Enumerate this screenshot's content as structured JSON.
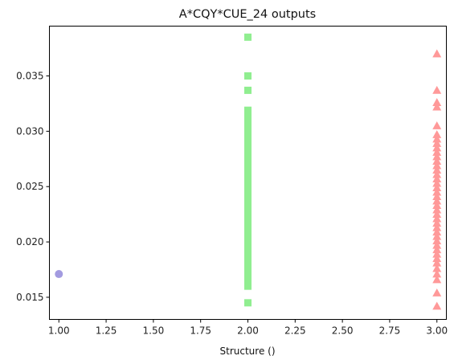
{
  "chart_data": {
    "type": "scatter",
    "title": "A*CQY*CUE_24 outputs",
    "xlabel": "Structure ()",
    "ylabel": "",
    "xlim": [
      0.95,
      3.05
    ],
    "ylim": [
      0.013,
      0.0395
    ],
    "x_ticks": [
      "1.00",
      "1.25",
      "1.50",
      "1.75",
      "2.00",
      "2.25",
      "2.50",
      "2.75",
      "3.00"
    ],
    "y_ticks": [
      "0.015",
      "0.020",
      "0.025",
      "0.030",
      "0.035"
    ],
    "grid": false,
    "series": [
      {
        "marker": "circle",
        "color": "#a39be0",
        "points": [
          [
            1.0,
            0.0171
          ]
        ]
      },
      {
        "marker": "square",
        "color": "#90ee90",
        "points": [
          [
            2.0,
            0.0385
          ],
          [
            2.0,
            0.035
          ],
          [
            2.0,
            0.0337
          ],
          [
            2.0,
            0.0319
          ],
          [
            2.0,
            0.0313
          ],
          [
            2.0,
            0.0308
          ],
          [
            2.0,
            0.0304
          ],
          [
            2.0,
            0.03
          ],
          [
            2.0,
            0.0296
          ],
          [
            2.0,
            0.0292
          ],
          [
            2.0,
            0.0288
          ],
          [
            2.0,
            0.0284
          ],
          [
            2.0,
            0.028
          ],
          [
            2.0,
            0.0276
          ],
          [
            2.0,
            0.0272
          ],
          [
            2.0,
            0.0268
          ],
          [
            2.0,
            0.0264
          ],
          [
            2.0,
            0.026
          ],
          [
            2.0,
            0.0256
          ],
          [
            2.0,
            0.0252
          ],
          [
            2.0,
            0.0248
          ],
          [
            2.0,
            0.0244
          ],
          [
            2.0,
            0.024
          ],
          [
            2.0,
            0.0236
          ],
          [
            2.0,
            0.0232
          ],
          [
            2.0,
            0.0228
          ],
          [
            2.0,
            0.0224
          ],
          [
            2.0,
            0.022
          ],
          [
            2.0,
            0.0216
          ],
          [
            2.0,
            0.0212
          ],
          [
            2.0,
            0.0208
          ],
          [
            2.0,
            0.0204
          ],
          [
            2.0,
            0.02
          ],
          [
            2.0,
            0.0196
          ],
          [
            2.0,
            0.0192
          ],
          [
            2.0,
            0.0188
          ],
          [
            2.0,
            0.0183
          ],
          [
            2.0,
            0.0178
          ],
          [
            2.0,
            0.0173
          ],
          [
            2.0,
            0.0168
          ],
          [
            2.0,
            0.0163
          ],
          [
            2.0,
            0.016
          ],
          [
            2.0,
            0.0145
          ]
        ]
      },
      {
        "marker": "triangle",
        "color": "#ff9999",
        "points": [
          [
            3.0,
            0.037
          ],
          [
            3.0,
            0.0337
          ],
          [
            3.0,
            0.0326
          ],
          [
            3.0,
            0.0322
          ],
          [
            3.0,
            0.0305
          ],
          [
            3.0,
            0.0297
          ],
          [
            3.0,
            0.0293
          ],
          [
            3.0,
            0.0289
          ],
          [
            3.0,
            0.0285
          ],
          [
            3.0,
            0.0281
          ],
          [
            3.0,
            0.0277
          ],
          [
            3.0,
            0.0273
          ],
          [
            3.0,
            0.0269
          ],
          [
            3.0,
            0.0265
          ],
          [
            3.0,
            0.0261
          ],
          [
            3.0,
            0.0257
          ],
          [
            3.0,
            0.0253
          ],
          [
            3.0,
            0.0249
          ],
          [
            3.0,
            0.0245
          ],
          [
            3.0,
            0.0241
          ],
          [
            3.0,
            0.0237
          ],
          [
            3.0,
            0.0233
          ],
          [
            3.0,
            0.0229
          ],
          [
            3.0,
            0.0225
          ],
          [
            3.0,
            0.0221
          ],
          [
            3.0,
            0.0217
          ],
          [
            3.0,
            0.0213
          ],
          [
            3.0,
            0.0209
          ],
          [
            3.0,
            0.0205
          ],
          [
            3.0,
            0.0201
          ],
          [
            3.0,
            0.0197
          ],
          [
            3.0,
            0.0193
          ],
          [
            3.0,
            0.0189
          ],
          [
            3.0,
            0.0185
          ],
          [
            3.0,
            0.0181
          ],
          [
            3.0,
            0.0176
          ],
          [
            3.0,
            0.0171
          ],
          [
            3.0,
            0.0166
          ],
          [
            3.0,
            0.0154
          ],
          [
            3.0,
            0.0142
          ]
        ]
      }
    ]
  }
}
